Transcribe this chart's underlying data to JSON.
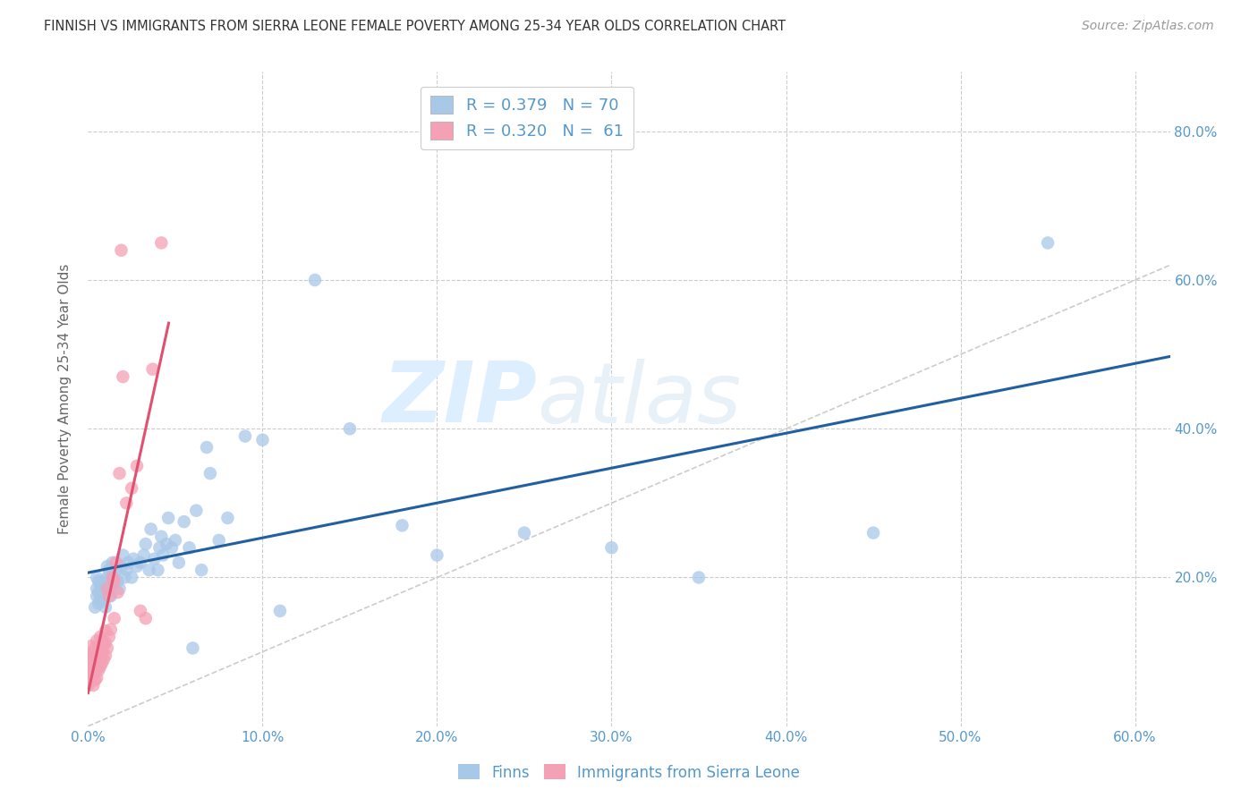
{
  "title": "FINNISH VS IMMIGRANTS FROM SIERRA LEONE FEMALE POVERTY AMONG 25-34 YEAR OLDS CORRELATION CHART",
  "source": "Source: ZipAtlas.com",
  "ylabel_text": "Female Poverty Among 25-34 Year Olds",
  "xlim": [
    0.0,
    0.62
  ],
  "ylim": [
    0.0,
    0.88
  ],
  "xticks": [
    0.0,
    0.1,
    0.2,
    0.3,
    0.4,
    0.5,
    0.6
  ],
  "yticks": [
    0.0,
    0.2,
    0.4,
    0.6,
    0.8
  ],
  "xticklabels": [
    "0.0%",
    "10.0%",
    "20.0%",
    "30.0%",
    "40.0%",
    "50.0%",
    "60.0%"
  ],
  "right_yticklabels": [
    "",
    "20.0%",
    "40.0%",
    "60.0%",
    "80.0%"
  ],
  "blue_color": "#a8c8e8",
  "pink_color": "#f4a0b5",
  "blue_line_color": "#2060a0",
  "pink_line_color": "#e05070",
  "diagonal_color": "#cccccc",
  "grid_color": "#cccccc",
  "tick_color": "#5599cc",
  "title_color": "#333333",
  "legend_R_blue": "R = 0.379",
  "legend_N_blue": "N = 70",
  "legend_R_pink": "R = 0.320",
  "legend_N_pink": "N =  61",
  "legend_label_blue": "Finns",
  "legend_label_pink": "Immigrants from Sierra Leone",
  "finns_x": [
    0.004,
    0.005,
    0.005,
    0.005,
    0.006,
    0.006,
    0.006,
    0.007,
    0.007,
    0.008,
    0.008,
    0.009,
    0.009,
    0.01,
    0.01,
    0.011,
    0.011,
    0.012,
    0.012,
    0.013,
    0.014,
    0.014,
    0.015,
    0.016,
    0.017,
    0.018,
    0.019,
    0.02,
    0.021,
    0.022,
    0.023,
    0.025,
    0.026,
    0.028,
    0.03,
    0.032,
    0.033,
    0.035,
    0.036,
    0.038,
    0.04,
    0.041,
    0.042,
    0.043,
    0.045,
    0.046,
    0.048,
    0.05,
    0.052,
    0.055,
    0.058,
    0.06,
    0.062,
    0.065,
    0.068,
    0.07,
    0.075,
    0.08,
    0.09,
    0.1,
    0.11,
    0.13,
    0.15,
    0.18,
    0.2,
    0.25,
    0.3,
    0.35,
    0.45,
    0.55
  ],
  "finns_y": [
    0.16,
    0.175,
    0.185,
    0.2,
    0.165,
    0.18,
    0.195,
    0.17,
    0.19,
    0.168,
    0.185,
    0.175,
    0.195,
    0.16,
    0.185,
    0.2,
    0.215,
    0.19,
    0.21,
    0.175,
    0.19,
    0.22,
    0.2,
    0.21,
    0.195,
    0.185,
    0.215,
    0.23,
    0.2,
    0.21,
    0.22,
    0.2,
    0.225,
    0.215,
    0.22,
    0.23,
    0.245,
    0.21,
    0.265,
    0.225,
    0.21,
    0.24,
    0.255,
    0.23,
    0.245,
    0.28,
    0.24,
    0.25,
    0.22,
    0.275,
    0.24,
    0.105,
    0.29,
    0.21,
    0.375,
    0.34,
    0.25,
    0.28,
    0.39,
    0.385,
    0.155,
    0.6,
    0.4,
    0.27,
    0.23,
    0.26,
    0.24,
    0.2,
    0.26,
    0.65
  ],
  "sierra_x": [
    0.0,
    0.0,
    0.0,
    0.0,
    0.001,
    0.001,
    0.001,
    0.001,
    0.002,
    0.002,
    0.002,
    0.002,
    0.002,
    0.003,
    0.003,
    0.003,
    0.003,
    0.004,
    0.004,
    0.004,
    0.004,
    0.005,
    0.005,
    0.005,
    0.005,
    0.005,
    0.006,
    0.006,
    0.006,
    0.007,
    0.007,
    0.007,
    0.007,
    0.008,
    0.008,
    0.008,
    0.009,
    0.009,
    0.01,
    0.01,
    0.01,
    0.011,
    0.011,
    0.012,
    0.012,
    0.013,
    0.014,
    0.015,
    0.015,
    0.016,
    0.017,
    0.018,
    0.019,
    0.02,
    0.022,
    0.025,
    0.028,
    0.03,
    0.033,
    0.037,
    0.042
  ],
  "sierra_y": [
    0.055,
    0.065,
    0.075,
    0.09,
    0.06,
    0.072,
    0.082,
    0.095,
    0.068,
    0.078,
    0.088,
    0.098,
    0.108,
    0.055,
    0.07,
    0.082,
    0.098,
    0.062,
    0.075,
    0.09,
    0.105,
    0.065,
    0.078,
    0.09,
    0.102,
    0.115,
    0.075,
    0.088,
    0.102,
    0.08,
    0.095,
    0.108,
    0.12,
    0.085,
    0.1,
    0.115,
    0.09,
    0.11,
    0.095,
    0.112,
    0.128,
    0.105,
    0.185,
    0.12,
    0.175,
    0.13,
    0.2,
    0.145,
    0.195,
    0.22,
    0.18,
    0.34,
    0.64,
    0.47,
    0.3,
    0.32,
    0.35,
    0.155,
    0.145,
    0.48,
    0.65
  ],
  "watermark_top": "ZIP",
  "watermark_bottom": "atlas",
  "watermark_color": "#ddeeff",
  "background_color": "#ffffff"
}
